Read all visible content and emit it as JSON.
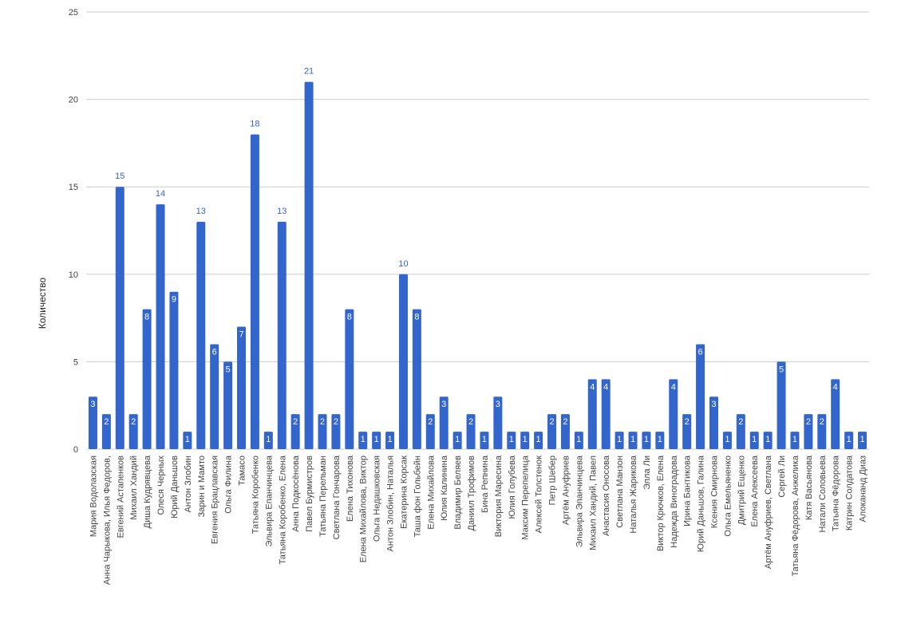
{
  "chart_data": {
    "type": "bar",
    "y_label": "Количество",
    "categories": [
      "Мария Водолазская",
      "Анна Чарыкова, Илья Федоров,",
      "Евгений Астапенков",
      "Михаил Хандий",
      "Диша Кудрявцева",
      "Олеся Черных",
      "Юрий Даньшов",
      "Антон Злобин",
      "Зарин и Мамто",
      "Евгения Брацлавская",
      "Ольга Филина",
      "Тамасо",
      "Татьяна Коробенко",
      "Эльвира Епанчинцева",
      "Татьяна Коробенко, Елена",
      "Анна Подкосёнова",
      "Павел Бурмистров",
      "Татьяна Перельман",
      "Светлана Гончарова",
      "Елена Тихонова",
      "Елена Михайлова, Виктор",
      "Ольга Недашковская",
      "Антон Злобин, Наталья",
      "Екатерина Корсак",
      "Таша фон Гольбейн",
      "Елена Михайлова",
      "Юлия Калинина",
      "Владимир Беляев",
      "Даниил Трофимов",
      "Бина Репнина",
      "Виктория Маресина",
      "Юлия Голубева",
      "Максим Перепелица",
      "Алексей Толстенок",
      "Петр Шебер",
      "Артём Ануфриев",
      "Эльвира Эпанчинцева",
      "Михаил Хандий, Павел",
      "Анастасия Оносова",
      "Светлана Манзон",
      "Наталья Жарикова",
      "Элла Ли",
      "Виктор Крючков, Елена",
      "Надежда Виноградова",
      "Ирина Бантикова",
      "Юрий Даньшов, Галина",
      "Ксения Смирнова",
      "Ольга Емельяненко",
      "Дмитрий Ещенко",
      "Елена Алексеева",
      "Артём Ануфриев, Светлана",
      "Сергей Ли",
      "Татьяна Фёдорова, Анжелика",
      "Катя Васьянова",
      "Натали Соловьева",
      "Татьяна Фёдорова",
      "Катрин Солдатова",
      "Алокананд Диаз"
    ],
    "values": [
      3,
      2,
      15,
      2,
      8,
      14,
      9,
      1,
      13,
      6,
      5,
      7,
      18,
      1,
      13,
      2,
      21,
      2,
      2,
      8,
      1,
      1,
      1,
      10,
      8,
      2,
      3,
      1,
      2,
      1,
      3,
      1,
      1,
      1,
      2,
      2,
      1,
      4,
      4,
      1,
      1,
      1,
      1,
      4,
      2,
      6,
      3,
      1,
      2,
      1,
      1,
      5,
      1,
      2,
      2,
      4,
      1,
      1
    ],
    "color": "#3366cc",
    "ylim": [
      0,
      25
    ],
    "yticks": [
      0,
      5,
      10,
      15,
      20,
      25
    ],
    "grid": true
  }
}
